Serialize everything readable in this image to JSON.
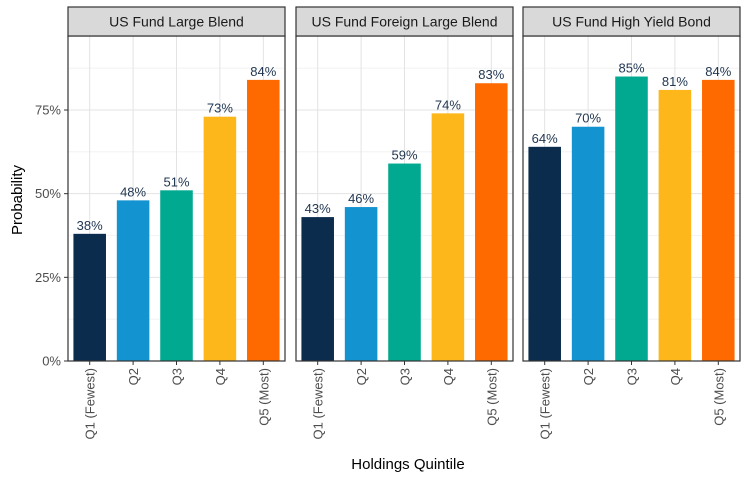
{
  "chart_data": {
    "type": "bar",
    "xlabel": "Holdings Quintile",
    "ylabel": "Probability",
    "ylim": [
      0,
      1
    ],
    "yticks": [
      0,
      0.25,
      0.5,
      0.75
    ],
    "ytick_labels": [
      "0%",
      "25%",
      "50%",
      "75%"
    ],
    "grid": true,
    "categories": [
      "Q1 (Fewest)",
      "Q2",
      "Q3",
      "Q4",
      "Q5 (Most)"
    ],
    "colors": [
      "#0b2c4d",
      "#1493d1",
      "#00a98f",
      "#fdb71a",
      "#ff6a00"
    ],
    "panels": [
      {
        "title": "US Fund Large Blend",
        "values": [
          0.38,
          0.48,
          0.51,
          0.73,
          0.84
        ],
        "labels": [
          "38%",
          "48%",
          "51%",
          "73%",
          "84%"
        ]
      },
      {
        "title": "US Fund Foreign Large Blend",
        "values": [
          0.43,
          0.46,
          0.59,
          0.74,
          0.83
        ],
        "labels": [
          "43%",
          "46%",
          "59%",
          "74%",
          "83%"
        ]
      },
      {
        "title": "US Fund High Yield Bond",
        "values": [
          0.64,
          0.7,
          0.85,
          0.81,
          0.84
        ],
        "labels": [
          "64%",
          "70%",
          "85%",
          "81%",
          "84%"
        ]
      }
    ]
  }
}
